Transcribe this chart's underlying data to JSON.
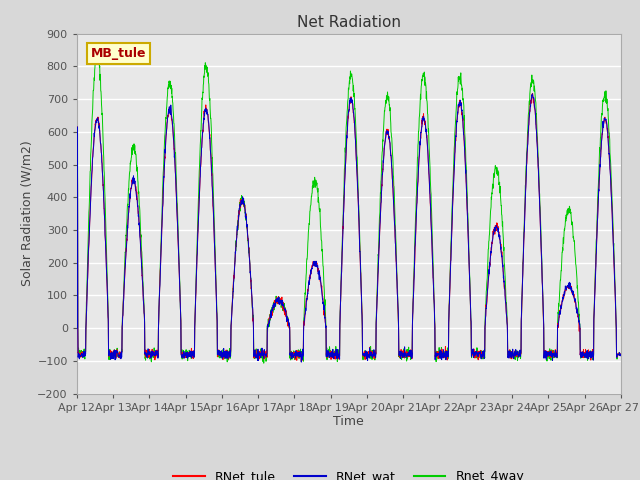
{
  "title": "Net Radiation",
  "xlabel": "Time",
  "ylabel": "Solar Radiation (W/m2)",
  "ylim": [
    -200,
    900
  ],
  "yticks": [
    -200,
    -100,
    0,
    100,
    200,
    300,
    400,
    500,
    600,
    700,
    800,
    900
  ],
  "fig_bg_color": "#d8d8d8",
  "plot_bg_color": "#e8e8e8",
  "legend_labels": [
    "RNet_tule",
    "RNet_wat",
    "Rnet_4way"
  ],
  "line_colors": [
    "#ff0000",
    "#0000cc",
    "#00cc00"
  ],
  "annotation_text": "MB_tule",
  "annotation_fg": "#aa0000",
  "annotation_bg": "#ffffcc",
  "annotation_border": "#ccaa00",
  "grid_color": "#ffffff",
  "n_days": 15,
  "start_day": 12,
  "points_per_day": 144
}
